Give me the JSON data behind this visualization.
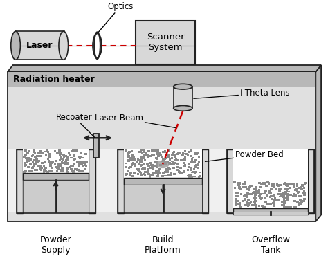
{
  "bg_color": "#ffffff",
  "light_gray": "#d8d8d8",
  "mid_gray": "#b8b8b8",
  "dark_gray": "#888888",
  "white": "#ffffff",
  "box_edge": "#222222",
  "powder_dot_color": "#888888",
  "red_beam": "#cc0000",
  "labels": {
    "optics": "Optics",
    "laser": "Laser",
    "scanner": "Scanner\nSystem",
    "radiation": "Radiation heater",
    "laser_beam": "Laser Beam",
    "recoater": "Recoater",
    "f_theta": "f-Theta Lens",
    "powder_bed": "Powder Bed",
    "powder_supply": "Powder\nSupply",
    "build_platform": "Build\nPlatform",
    "overflow_tank": "Overflow\nTank"
  }
}
